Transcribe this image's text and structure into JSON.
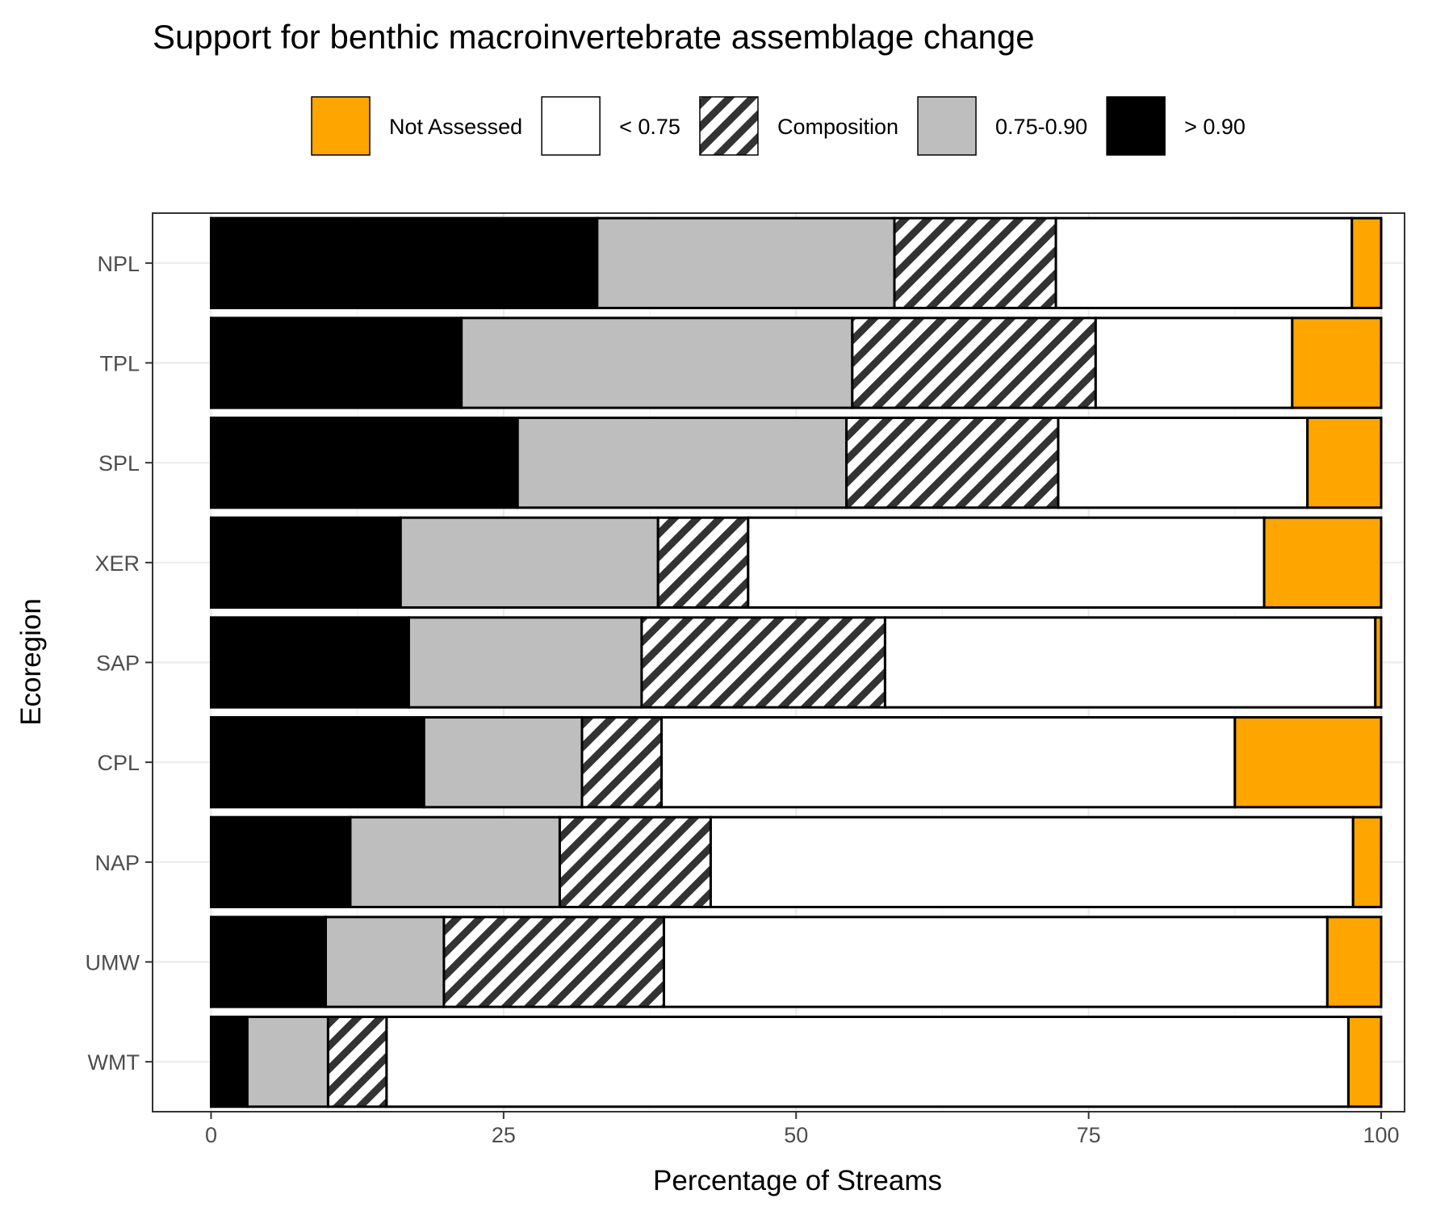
{
  "chart_data": {
    "type": "bar",
    "orientation": "horizontal",
    "stacked": true,
    "title": "Support for benthic macroinvertebrate assemblage change",
    "xlabel": "Percentage of Streams",
    "ylabel": "Ecoregion",
    "xlim": [
      -5,
      102
    ],
    "xticks": [
      0,
      25,
      50,
      75,
      100
    ],
    "grid": true,
    "legend_position": "top",
    "categories": [
      "NPL",
      "TPL",
      "SPL",
      "XER",
      "SAP",
      "CPL",
      "NAP",
      "UMW",
      "WMT"
    ],
    "series": [
      {
        "name": "> 0.90",
        "fill": "#000000",
        "pattern": "solid",
        "values": [
          33.0,
          21.4,
          26.2,
          16.2,
          16.9,
          18.2,
          11.9,
          9.8,
          3.1
        ]
      },
      {
        "name": "0.75-0.90",
        "fill": "#bebebe",
        "pattern": "solid",
        "values": [
          25.4,
          33.4,
          28.1,
          22.0,
          19.9,
          13.5,
          17.9,
          10.1,
          6.9
        ]
      },
      {
        "name": "Composition",
        "fill": "#ffffff",
        "pattern": "stripes",
        "values": [
          13.8,
          20.8,
          18.1,
          7.7,
          20.8,
          6.8,
          12.9,
          18.8,
          5.0
        ]
      },
      {
        "name": "< 0.75",
        "fill": "#ffffff",
        "pattern": "solid",
        "values": [
          25.3,
          16.8,
          21.3,
          44.1,
          41.9,
          49.0,
          54.9,
          56.7,
          82.2
        ]
      },
      {
        "name": "Not Assessed",
        "fill": "#ffa500",
        "pattern": "solid",
        "values": [
          2.5,
          7.6,
          6.3,
          10.0,
          0.5,
          12.5,
          2.4,
          4.6,
          2.8
        ]
      }
    ],
    "legend_order": [
      "Not Assessed",
      "< 0.75",
      "Composition",
      "0.75-0.90",
      "> 0.90"
    ]
  }
}
